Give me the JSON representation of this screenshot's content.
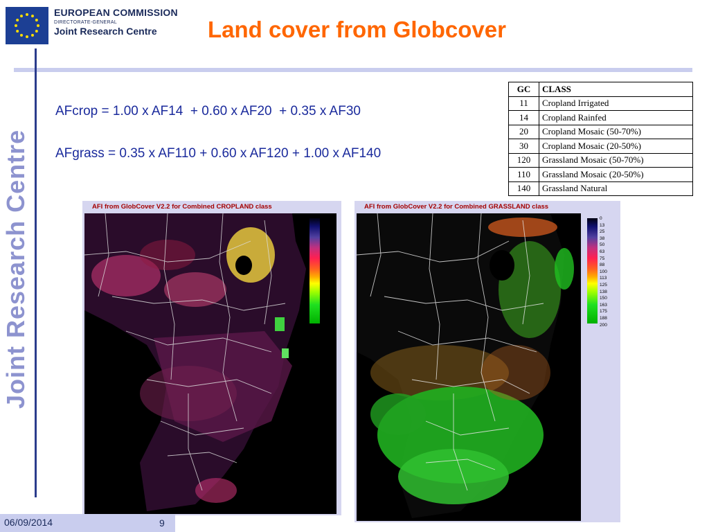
{
  "header": {
    "org": "EUROPEAN COMMISSION",
    "dg": "DIRECTORATE-GENERAL",
    "jrc": "Joint Research Centre"
  },
  "title": "Land cover from Globcover",
  "side_label": "Joint Research Centre",
  "formulas": {
    "crop": "AFcrop = 1.00 x AF14  + 0.60 x AF20  + 0.35 x AF30",
    "grass": "AFgrass = 0.35 x AF110 + 0.60 x AF120 + 1.00 x AF140"
  },
  "table": {
    "headers": [
      "GC",
      "CLASS"
    ],
    "rows": [
      [
        "11",
        "Cropland Irrigated"
      ],
      [
        "14",
        "Cropland Rainfed"
      ],
      [
        "20",
        "Cropland Mosaic (50-70%)"
      ],
      [
        "30",
        "Cropland Mosaic (20-50%)"
      ],
      [
        "120",
        "Grassland Mosaic (50-70%)"
      ],
      [
        "110",
        "Grassland Mosaic (20-50%)"
      ],
      [
        "140",
        "Grassland Natural"
      ]
    ]
  },
  "maps": {
    "crop_title": "AFI from GlobCover V2.2 for Combined CROPLAND class",
    "grass_title": "AFI from GlobCover V2.2 for Combined GRASSLAND class",
    "legend": [
      "0",
      "13",
      "25",
      "38",
      "50",
      "63",
      "75",
      "88",
      "100",
      "113",
      "125",
      "138",
      "150",
      "163",
      "175",
      "188",
      "200"
    ]
  },
  "footer": {
    "date": "06/09/2014",
    "page": "9"
  },
  "colors": {
    "title": "#ff6600",
    "formula": "#1a2a9c",
    "accent_band": "#c9cdee",
    "rule": "#2b3c8c",
    "map_title": "#a40000"
  }
}
